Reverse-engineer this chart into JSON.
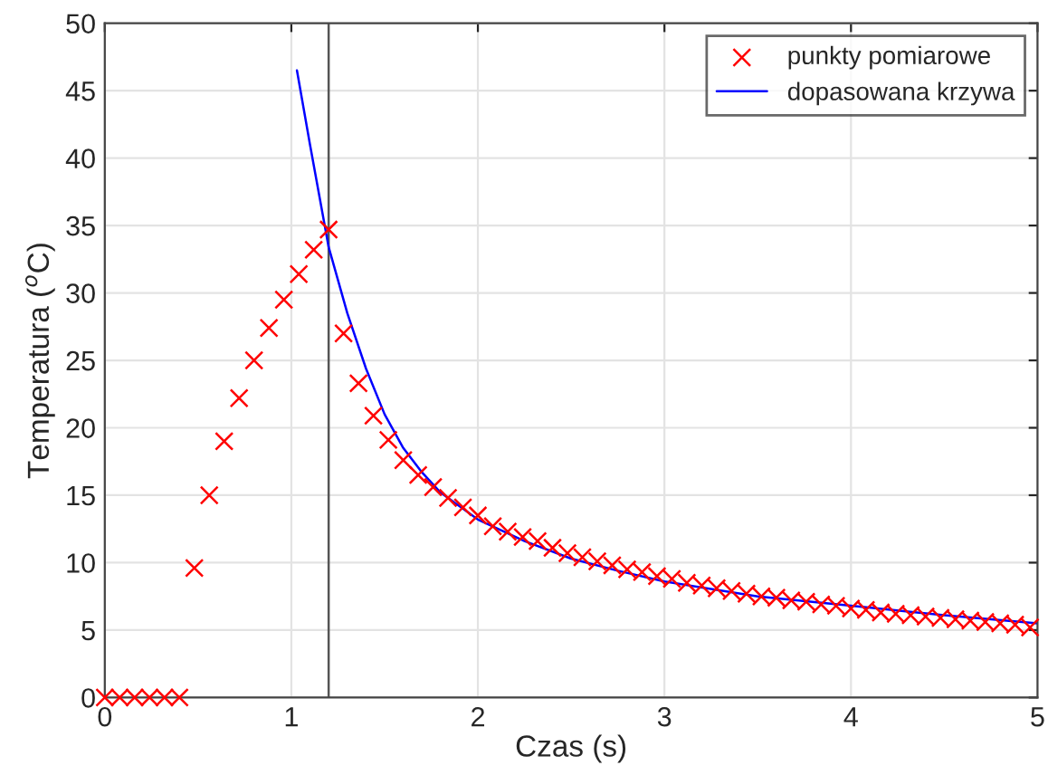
{
  "chart_data": {
    "type": "scatter",
    "xlabel": "Czas (s)",
    "ylabel": "Temperatura ($^{o}$C)",
    "xlim": [
      0,
      5
    ],
    "ylim": [
      0,
      50
    ],
    "xticks": [
      0,
      1,
      2,
      3,
      4,
      5
    ],
    "yticks": [
      0,
      5,
      10,
      15,
      20,
      25,
      30,
      35,
      40,
      45,
      50
    ],
    "grid": true,
    "legend": "top right",
    "series": [
      {
        "name": "punkty pomiarowe",
        "type": "scatter",
        "color": "#ff0000",
        "marker": "cross",
        "x": [
          0,
          0.08,
          0.16,
          0.24,
          0.32,
          0.4,
          0.48,
          0.56,
          0.64,
          0.72,
          0.8,
          0.88,
          0.96,
          1.04,
          1.12,
          1.2,
          1.28,
          1.36,
          1.44,
          1.52,
          1.6,
          1.68,
          1.76,
          1.84,
          1.92,
          2.0,
          2.08,
          2.16,
          2.24,
          2.32,
          2.4,
          2.48,
          2.56,
          2.64,
          2.72,
          2.8,
          2.88,
          2.96,
          3.04,
          3.12,
          3.2,
          3.28,
          3.36,
          3.44,
          3.52,
          3.6,
          3.68,
          3.76,
          3.84,
          3.92,
          4.0,
          4.08,
          4.16,
          4.24,
          4.32,
          4.4,
          4.48,
          4.56,
          4.64,
          4.72,
          4.8,
          4.88,
          4.96
        ],
        "values": [
          0,
          0,
          0,
          0,
          0,
          0,
          9.6,
          15,
          19,
          22.2,
          25,
          27.4,
          29.5,
          31.4,
          33.2,
          34.7,
          27,
          23.3,
          20.9,
          19.1,
          17.6,
          16.5,
          15.6,
          14.8,
          14.1,
          13.5,
          12.7,
          12.3,
          11.9,
          11.6,
          11.1,
          10.7,
          10.4,
          10.1,
          9.8,
          9.5,
          9.3,
          9.0,
          8.8,
          8.5,
          8.3,
          8.1,
          7.9,
          7.7,
          7.5,
          7.4,
          7.2,
          7.1,
          6.9,
          6.8,
          6.6,
          6.5,
          6.3,
          6.2,
          6.1,
          6.0,
          5.9,
          5.8,
          5.7,
          5.6,
          5.5,
          5.4,
          5.2
        ]
      },
      {
        "name": "dopasowana krzywa",
        "type": "line",
        "color": "#0000ff",
        "marker": "none",
        "line_style": "solid",
        "x": [
          1.03,
          1.1,
          1.2,
          1.3,
          1.4,
          1.5,
          1.6,
          1.7,
          1.8,
          2.0,
          2.25,
          2.5,
          2.75,
          3.0,
          3.5,
          4.0,
          4.5,
          5.0
        ],
        "values": [
          46.5,
          41,
          33.4,
          28.5,
          24.4,
          21,
          18.5,
          16.7,
          15.2,
          13.2,
          11.6,
          10.3,
          9.4,
          8.6,
          7.5,
          6.8,
          6.1,
          5.5
        ]
      }
    ],
    "ref_lines": [
      {
        "axis": "x",
        "value": 1.2,
        "color": "#555555"
      }
    ]
  }
}
